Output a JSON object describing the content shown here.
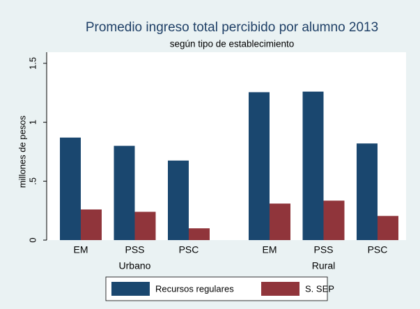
{
  "chart_data": {
    "type": "grouped-bar",
    "title": "Promedio ingreso total percibido por alumno 2013",
    "subtitle": "según tipo de establecimiento",
    "y_label": "millones de pesos",
    "categories": [
      "EM",
      "PSS",
      "PSC",
      "EM",
      "PSS",
      "PSC"
    ],
    "group_labels": [
      "Urbano",
      "Rural"
    ],
    "series": [
      {
        "name": "Recursos regulares",
        "color": "#1a476f",
        "values": [
          0.87,
          0.8,
          0.675,
          1.255,
          1.26,
          0.82
        ]
      },
      {
        "name": "S. SEP",
        "color": "#90353b",
        "values": [
          0.26,
          0.24,
          0.1,
          0.31,
          0.335,
          0.205
        ]
      }
    ],
    "ylim": [
      0,
      1.5
    ],
    "yticks": [
      0,
      {
        "value": 0.5,
        "label": ".5"
      },
      1,
      1.5
    ],
    "grid": false
  }
}
